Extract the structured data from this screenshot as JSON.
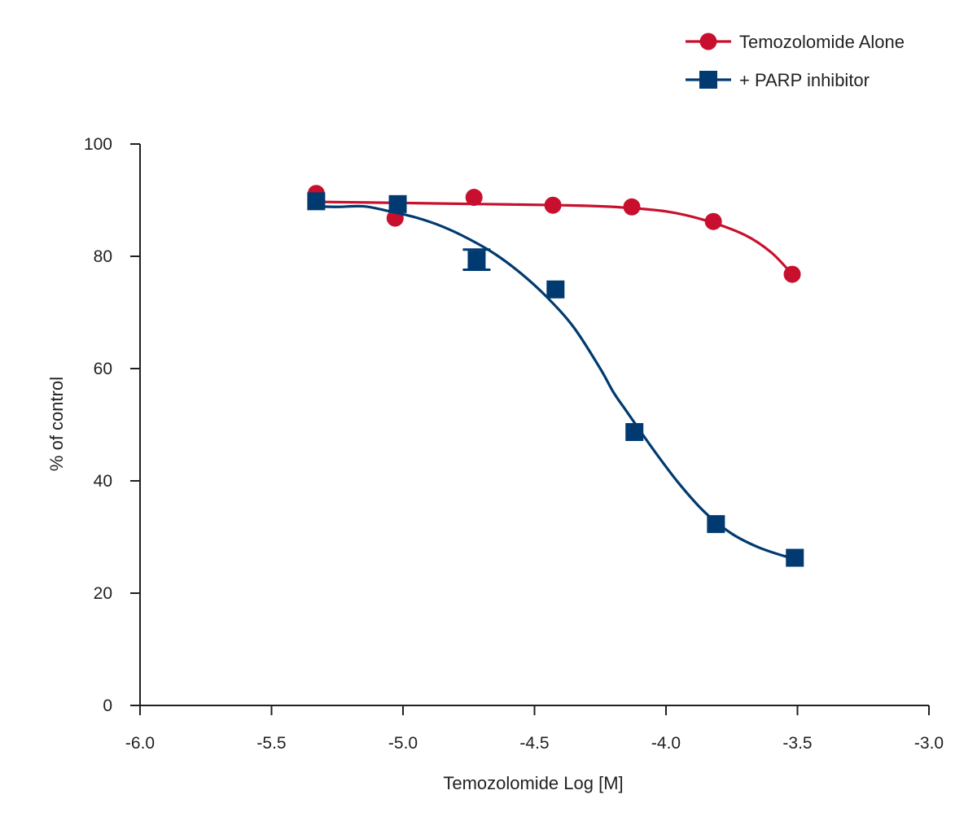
{
  "chart_data": {
    "type": "line",
    "title": "",
    "xlabel": "Temozolomide Log [M]",
    "ylabel": "% of control",
    "xlim": [
      -6.0,
      -3.0
    ],
    "ylim": [
      0,
      100
    ],
    "xticks": [
      "-6.0",
      "-5.5",
      "-5.0",
      "-4.5",
      "-4.0",
      "-3.5",
      "-3.0"
    ],
    "yticks": [
      "0",
      "20",
      "40",
      "60",
      "80",
      "100"
    ],
    "grid": false,
    "legend_position": "top-right",
    "series": [
      {
        "name": "Temozolomide Alone",
        "marker": "circle",
        "color": "#c8102e",
        "x": [
          -5.33,
          -5.03,
          -4.73,
          -4.43,
          -4.13,
          -3.82,
          -3.52
        ],
        "y": [
          91.2,
          86.8,
          90.5,
          89.1,
          88.8,
          86.2,
          76.8
        ],
        "fit_curve": {
          "x": [
            -5.33,
            -5.0,
            -4.7,
            -4.4,
            -4.2,
            -4.0,
            -3.85,
            -3.7,
            -3.6,
            -3.52
          ],
          "y": [
            89.7,
            89.5,
            89.3,
            89.1,
            88.8,
            88.0,
            86.4,
            83.8,
            80.7,
            76.8
          ]
        }
      },
      {
        "name": "+ PARP inhibitor",
        "marker": "square",
        "color": "#003a70",
        "x": [
          -5.33,
          -5.02,
          -4.72,
          -4.42,
          -4.12,
          -3.81,
          -3.51
        ],
        "y": [
          89.8,
          89.3,
          79.4,
          74.1,
          48.7,
          32.3,
          26.3
        ],
        "error": [
          0,
          0,
          1.8,
          0,
          0,
          0,
          0
        ],
        "fit_curve": {
          "x": [
            -5.33,
            -5.25,
            -5.15,
            -5.05,
            -4.95,
            -4.85,
            -4.75,
            -4.65,
            -4.55,
            -4.45,
            -4.35,
            -4.25,
            -4.2,
            -4.15,
            -4.05,
            -3.95,
            -3.85,
            -3.75,
            -3.65,
            -3.55,
            -3.51
          ],
          "y": [
            88.9,
            88.8,
            88.9,
            88.0,
            86.9,
            85.3,
            83.1,
            80.4,
            76.9,
            72.6,
            67.3,
            60.0,
            55.8,
            52.4,
            45.7,
            39.5,
            34.3,
            30.6,
            28.2,
            26.6,
            26.2
          ]
        }
      }
    ]
  }
}
